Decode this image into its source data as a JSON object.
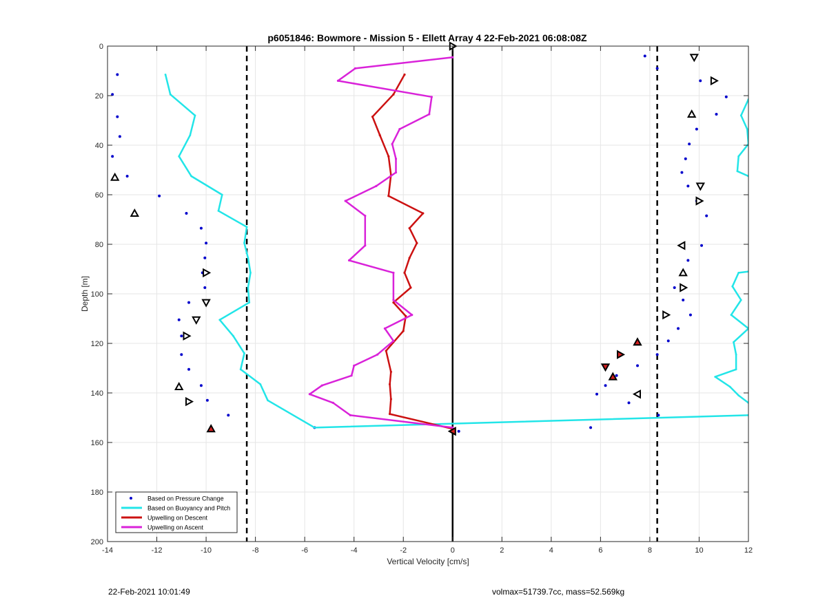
{
  "chart_data": {
    "type": "line",
    "title": "p6051846: Bowmore - Mission 5 - Ellett Array 4 22-Feb-2021 06:08:08Z",
    "xlabel": "Vertical Velocity [cm/s]",
    "ylabel": "Depth [m]",
    "xlim": [
      -14,
      12
    ],
    "ylim": [
      0,
      200
    ],
    "y_reversed": true,
    "grid": true,
    "legend_position": "bottom-left",
    "x_ticks": [
      -14,
      -12,
      -10,
      -8,
      -6,
      -4,
      -2,
      0,
      2,
      4,
      6,
      8,
      10,
      12
    ],
    "y_ticks": [
      0,
      20,
      40,
      60,
      80,
      100,
      120,
      140,
      160,
      180,
      200
    ],
    "reference_lines": {
      "vertical_solid_x": 0,
      "vertical_dashed_x": [
        -8.35,
        8.3
      ]
    },
    "series": [
      {
        "name": "Based on Pressure Change",
        "style": "dots",
        "color": "#0000cc",
        "points": [
          [
            -13.6,
            11.5
          ],
          [
            -13.8,
            19.5
          ],
          [
            -13.6,
            28.5
          ],
          [
            -13.5,
            36.5
          ],
          [
            -13.8,
            44.5
          ],
          [
            -13.2,
            52.5
          ],
          [
            -11.9,
            60.5
          ],
          [
            -10.8,
            67.5
          ],
          [
            -10.2,
            73.5
          ],
          [
            -10.0,
            79.5
          ],
          [
            -10.05,
            85.5
          ],
          [
            -10.15,
            91.5
          ],
          [
            -10.05,
            97.5
          ],
          [
            -10.7,
            103.5
          ],
          [
            -11.1,
            110.5
          ],
          [
            -11.0,
            117.0
          ],
          [
            -11.0,
            124.5
          ],
          [
            -10.7,
            130.5
          ],
          [
            -10.2,
            137.0
          ],
          [
            -9.95,
            143.0
          ],
          [
            -9.1,
            149.0
          ],
          [
            -5.6,
            154.0
          ],
          [
            0.25,
            155.5
          ],
          [
            7.8,
            4.0
          ],
          [
            8.3,
            9.0
          ],
          [
            10.05,
            14.0
          ],
          [
            11.1,
            20.5
          ],
          [
            10.7,
            27.5
          ],
          [
            9.9,
            33.5
          ],
          [
            9.6,
            39.5
          ],
          [
            9.45,
            45.5
          ],
          [
            9.3,
            51.0
          ],
          [
            9.55,
            56.5
          ],
          [
            9.9,
            62.5
          ],
          [
            10.3,
            68.5
          ],
          [
            10.1,
            80.5
          ],
          [
            9.55,
            86.5
          ],
          [
            9.0,
            97.5
          ],
          [
            9.35,
            102.5
          ],
          [
            9.65,
            108.5
          ],
          [
            9.15,
            114.0
          ],
          [
            8.75,
            119.0
          ],
          [
            8.3,
            124.5
          ],
          [
            7.5,
            129.0
          ],
          [
            6.65,
            133.0
          ],
          [
            6.2,
            137.0
          ],
          [
            5.85,
            140.5
          ],
          [
            7.15,
            144.0
          ],
          [
            8.35,
            149.0
          ],
          [
            5.6,
            154.0
          ]
        ]
      },
      {
        "name": "Based on Buoyancy and Pitch",
        "style": "line",
        "color": "#22e5e8",
        "segments": [
          [
            [
              -11.65,
              11.5
            ],
            [
              -11.45,
              19.5
            ],
            [
              -10.45,
              28.0
            ],
            [
              -10.65,
              36.0
            ],
            [
              -11.1,
              44.5
            ],
            [
              -10.6,
              52.5
            ],
            [
              -9.35,
              60.0
            ],
            [
              -9.5,
              66.5
            ],
            [
              -8.35,
              73.0
            ],
            [
              -8.45,
              79.5
            ],
            [
              -8.3,
              85.5
            ],
            [
              -8.2,
              91.5
            ],
            [
              -8.3,
              97.5
            ],
            [
              -8.25,
              103.5
            ],
            [
              -9.45,
              110.5
            ],
            [
              -8.9,
              117.0
            ],
            [
              -8.45,
              124.0
            ],
            [
              -8.6,
              130.5
            ],
            [
              -7.8,
              136.5
            ],
            [
              -7.5,
              143.0
            ],
            [
              -5.6,
              154.0
            ],
            [
              12.0,
              149.0
            ]
          ],
          [
            [
              12.0,
              21.5
            ],
            [
              11.7,
              28.0
            ],
            [
              11.95,
              33.5
            ],
            [
              12.0,
              39.5
            ],
            [
              11.6,
              44.5
            ],
            [
              11.55,
              50.5
            ],
            [
              12.0,
              52.5
            ]
          ],
          [
            [
              12.0,
              91.0
            ],
            [
              11.6,
              91.5
            ],
            [
              11.35,
              97.0
            ],
            [
              11.7,
              102.5
            ],
            [
              11.3,
              108.5
            ],
            [
              12.0,
              114.0
            ],
            [
              11.4,
              119.5
            ],
            [
              11.5,
              124.5
            ],
            [
              11.5,
              130.5
            ],
            [
              10.65,
              133.5
            ],
            [
              11.25,
              137.5
            ],
            [
              11.6,
              141.0
            ],
            [
              12.0,
              144.0
            ]
          ]
        ]
      },
      {
        "name": "Upwelling on Descent",
        "style": "line",
        "color": "#cc1111",
        "points": [
          [
            -1.95,
            11.5
          ],
          [
            -2.4,
            19.5
          ],
          [
            -3.25,
            28.5
          ],
          [
            -2.95,
            36.0
          ],
          [
            -2.6,
            44.5
          ],
          [
            -2.5,
            52.0
          ],
          [
            -2.6,
            60.5
          ],
          [
            -1.2,
            67.5
          ],
          [
            -1.75,
            73.5
          ],
          [
            -1.45,
            79.5
          ],
          [
            -1.75,
            85.5
          ],
          [
            -1.95,
            91.5
          ],
          [
            -1.7,
            97.5
          ],
          [
            -2.4,
            103.5
          ],
          [
            -1.9,
            109.0
          ],
          [
            -2.0,
            115.0
          ],
          [
            -2.7,
            123.0
          ],
          [
            -2.5,
            131.5
          ],
          [
            -2.55,
            136.5
          ],
          [
            -2.5,
            142.5
          ],
          [
            -2.55,
            148.5
          ],
          [
            0.0,
            154.5
          ]
        ]
      },
      {
        "name": "Upwelling on Ascent",
        "style": "line",
        "color": "#d922d9",
        "points": [
          [
            0.0,
            4.5
          ],
          [
            -3.95,
            9.0
          ],
          [
            -4.65,
            14.0
          ],
          [
            -0.85,
            20.5
          ],
          [
            -0.95,
            27.5
          ],
          [
            -2.15,
            33.5
          ],
          [
            -2.45,
            39.5
          ],
          [
            -2.3,
            45.5
          ],
          [
            -2.3,
            51.0
          ],
          [
            -3.1,
            56.5
          ],
          [
            -4.35,
            62.5
          ],
          [
            -3.55,
            68.5
          ],
          [
            -3.55,
            80.5
          ],
          [
            -4.2,
            86.5
          ],
          [
            -2.4,
            91.5
          ],
          [
            -2.4,
            102.5
          ],
          [
            -1.65,
            108.5
          ],
          [
            -2.75,
            114.0
          ],
          [
            -2.4,
            119.0
          ],
          [
            -3.05,
            124.5
          ],
          [
            -4.0,
            129.0
          ],
          [
            -4.1,
            133.0
          ],
          [
            -5.3,
            137.0
          ],
          [
            -5.8,
            140.5
          ],
          [
            -4.85,
            144.0
          ],
          [
            -4.15,
            149.0
          ],
          [
            0.0,
            154.0
          ]
        ]
      }
    ],
    "markers": [
      {
        "x": 0.0,
        "y": 0.0,
        "shape": "tri-right",
        "filled": false
      },
      {
        "x": 9.8,
        "y": 4.5,
        "shape": "tri-down",
        "filled": false
      },
      {
        "x": 10.6,
        "y": 14.0,
        "shape": "tri-right",
        "filled": false
      },
      {
        "x": 9.7,
        "y": 27.5,
        "shape": "tri-up",
        "filled": false
      },
      {
        "x": -13.7,
        "y": 53.0,
        "shape": "tri-up",
        "filled": false
      },
      {
        "x": 10.05,
        "y": 56.5,
        "shape": "tri-down",
        "filled": false
      },
      {
        "x": 10.0,
        "y": 62.5,
        "shape": "tri-right",
        "filled": false
      },
      {
        "x": -12.9,
        "y": 67.5,
        "shape": "tri-up",
        "filled": false
      },
      {
        "x": 9.3,
        "y": 80.5,
        "shape": "tri-left",
        "filled": false
      },
      {
        "x": -10.0,
        "y": 91.5,
        "shape": "tri-right",
        "filled": false
      },
      {
        "x": 9.35,
        "y": 91.5,
        "shape": "tri-up",
        "filled": false
      },
      {
        "x": 9.35,
        "y": 97.5,
        "shape": "tri-right",
        "filled": false
      },
      {
        "x": -10.0,
        "y": 103.5,
        "shape": "tri-down",
        "filled": false
      },
      {
        "x": 8.65,
        "y": 108.5,
        "shape": "tri-right",
        "filled": false
      },
      {
        "x": -10.4,
        "y": 110.5,
        "shape": "tri-down",
        "filled": false
      },
      {
        "x": -10.8,
        "y": 117.0,
        "shape": "tri-right",
        "filled": false
      },
      {
        "x": 7.5,
        "y": 119.5,
        "shape": "tri-up",
        "filled": true
      },
      {
        "x": 6.8,
        "y": 124.5,
        "shape": "tri-right",
        "filled": true
      },
      {
        "x": 6.2,
        "y": 129.5,
        "shape": "tri-down",
        "filled": true
      },
      {
        "x": 6.5,
        "y": 133.5,
        "shape": "tri-up",
        "filled": true
      },
      {
        "x": -11.1,
        "y": 137.5,
        "shape": "tri-up",
        "filled": false
      },
      {
        "x": 7.5,
        "y": 140.5,
        "shape": "tri-left",
        "filled": false
      },
      {
        "x": -10.7,
        "y": 143.5,
        "shape": "tri-right",
        "filled": false
      },
      {
        "x": -9.8,
        "y": 154.5,
        "shape": "tri-up",
        "filled": true
      },
      {
        "x": 0.0,
        "y": 155.5,
        "shape": "tri-left",
        "filled": true
      }
    ]
  },
  "footer": {
    "timestamp": "22-Feb-2021 10:01:49",
    "summary": "volmax=51739.7cc, mass=52.569kg"
  }
}
